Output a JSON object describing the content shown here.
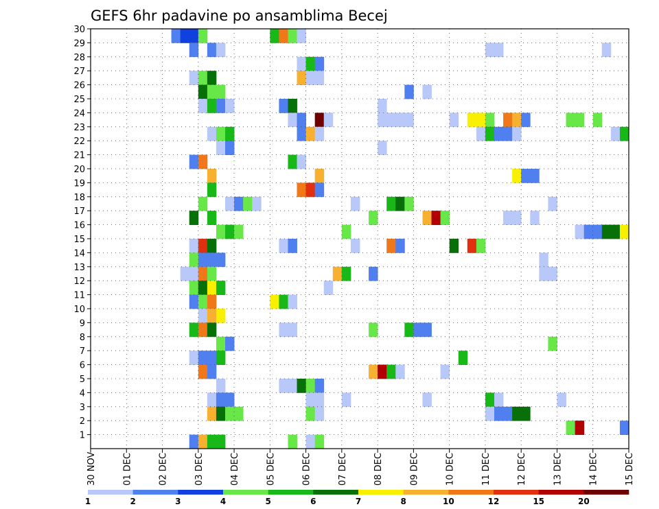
{
  "chart_data": {
    "type": "heatmap",
    "title": "GEFS 6hr padavine po ansamblima Becej",
    "xlabel": "",
    "ylabel": "",
    "y_tick_labels": [
      "1",
      "2",
      "3",
      "4",
      "5",
      "6",
      "7",
      "8",
      "9",
      "10",
      "11",
      "12",
      "13",
      "14",
      "15",
      "16",
      "17",
      "18",
      "19",
      "20",
      "21",
      "22",
      "23",
      "24",
      "25",
      "26",
      "27",
      "28",
      "29",
      "30"
    ],
    "x_tick_labels": [
      "30 NOV",
      "01 DEC",
      "02 DEC",
      "03 DEC",
      "04 DEC",
      "05 DEC",
      "06 DEC",
      "07 DEC",
      "08 DEC",
      "09 DEC",
      "10 DEC",
      "11 DEC",
      "12 DEC",
      "13 DEC",
      "14 DEC",
      "15 DEC"
    ],
    "x_range_steps": [
      0,
      60
    ],
    "y_range_members": [
      0,
      30
    ],
    "grid": true,
    "legend": {
      "position": "bottom",
      "labels": [
        "1",
        "2",
        "3",
        "4",
        "5",
        "6",
        "7",
        "8",
        "10",
        "12",
        "15",
        "20"
      ],
      "colors": [
        "#b8c8f8",
        "#5080f0",
        "#1040e0",
        "#68e848",
        "#18b818",
        "#087008",
        "#f8f000",
        "#f8b030",
        "#f07818",
        "#e03010",
        "#b00000",
        "#700000"
      ]
    },
    "cells": [
      [
        30,
        9,
        2
      ],
      [
        30,
        10,
        3
      ],
      [
        30,
        11,
        3
      ],
      [
        30,
        12,
        4
      ],
      [
        30,
        20,
        5
      ],
      [
        30,
        21,
        10
      ],
      [
        30,
        22,
        4
      ],
      [
        30,
        23,
        1
      ],
      [
        29,
        11,
        2
      ],
      [
        29,
        13,
        2
      ],
      [
        29,
        14,
        1
      ],
      [
        29,
        44,
        1
      ],
      [
        29,
        45,
        1
      ],
      [
        29,
        57,
        1
      ],
      [
        28,
        23,
        1
      ],
      [
        28,
        24,
        5
      ],
      [
        28,
        25,
        2
      ],
      [
        27,
        11,
        1
      ],
      [
        27,
        12,
        4
      ],
      [
        27,
        13,
        6
      ],
      [
        27,
        23,
        8
      ],
      [
        27,
        24,
        1
      ],
      [
        27,
        25,
        1
      ],
      [
        26,
        12,
        6
      ],
      [
        26,
        13,
        4
      ],
      [
        26,
        14,
        4
      ],
      [
        26,
        35,
        2
      ],
      [
        26,
        37,
        1
      ],
      [
        25,
        12,
        1
      ],
      [
        25,
        13,
        5
      ],
      [
        25,
        14,
        2
      ],
      [
        25,
        15,
        1
      ],
      [
        25,
        21,
        2
      ],
      [
        25,
        22,
        6
      ],
      [
        25,
        32,
        1
      ],
      [
        24,
        22,
        1
      ],
      [
        24,
        23,
        2
      ],
      [
        24,
        25,
        20
      ],
      [
        24,
        26,
        1
      ],
      [
        24,
        32,
        1
      ],
      [
        24,
        33,
        1
      ],
      [
        24,
        34,
        1
      ],
      [
        24,
        35,
        1
      ],
      [
        24,
        40,
        1
      ],
      [
        24,
        42,
        7
      ],
      [
        24,
        43,
        7
      ],
      [
        24,
        44,
        4
      ],
      [
        24,
        46,
        10
      ],
      [
        24,
        47,
        8
      ],
      [
        24,
        48,
        2
      ],
      [
        24,
        53,
        4
      ],
      [
        24,
        54,
        4
      ],
      [
        24,
        56,
        4
      ],
      [
        23,
        13,
        1
      ],
      [
        23,
        14,
        4
      ],
      [
        23,
        15,
        5
      ],
      [
        23,
        23,
        2
      ],
      [
        23,
        24,
        8
      ],
      [
        23,
        25,
        1
      ],
      [
        23,
        43,
        1
      ],
      [
        23,
        44,
        5
      ],
      [
        23,
        45,
        2
      ],
      [
        23,
        46,
        2
      ],
      [
        23,
        47,
        1
      ],
      [
        23,
        58,
        1
      ],
      [
        23,
        59,
        5
      ],
      [
        22,
        14,
        1
      ],
      [
        22,
        15,
        2
      ],
      [
        22,
        32,
        1
      ],
      [
        21,
        11,
        2
      ],
      [
        21,
        12,
        10
      ],
      [
        21,
        22,
        5
      ],
      [
        21,
        23,
        1
      ],
      [
        20,
        13,
        8
      ],
      [
        20,
        25,
        8
      ],
      [
        20,
        47,
        7
      ],
      [
        20,
        48,
        2
      ],
      [
        20,
        49,
        2
      ],
      [
        19,
        13,
        5
      ],
      [
        19,
        23,
        10
      ],
      [
        19,
        24,
        12
      ],
      [
        19,
        25,
        2
      ],
      [
        18,
        12,
        4
      ],
      [
        18,
        15,
        1
      ],
      [
        18,
        16,
        2
      ],
      [
        18,
        17,
        4
      ],
      [
        18,
        18,
        1
      ],
      [
        18,
        29,
        1
      ],
      [
        18,
        33,
        5
      ],
      [
        18,
        34,
        6
      ],
      [
        18,
        35,
        4
      ],
      [
        18,
        51,
        1
      ],
      [
        17,
        11,
        6
      ],
      [
        17,
        13,
        5
      ],
      [
        17,
        31,
        4
      ],
      [
        17,
        37,
        8
      ],
      [
        17,
        38,
        15
      ],
      [
        17,
        39,
        4
      ],
      [
        17,
        46,
        1
      ],
      [
        17,
        47,
        1
      ],
      [
        17,
        49,
        1
      ],
      [
        16,
        14,
        4
      ],
      [
        16,
        15,
        5
      ],
      [
        16,
        16,
        4
      ],
      [
        16,
        28,
        4
      ],
      [
        16,
        54,
        1
      ],
      [
        16,
        55,
        2
      ],
      [
        16,
        56,
        2
      ],
      [
        16,
        57,
        6
      ],
      [
        16,
        58,
        6
      ],
      [
        16,
        59,
        7
      ],
      [
        15,
        11,
        1
      ],
      [
        15,
        12,
        12
      ],
      [
        15,
        13,
        6
      ],
      [
        15,
        21,
        1
      ],
      [
        15,
        22,
        2
      ],
      [
        15,
        29,
        1
      ],
      [
        15,
        33,
        10
      ],
      [
        15,
        34,
        2
      ],
      [
        15,
        40,
        6
      ],
      [
        15,
        42,
        12
      ],
      [
        15,
        43,
        4
      ],
      [
        14,
        11,
        4
      ],
      [
        14,
        12,
        2
      ],
      [
        14,
        13,
        2
      ],
      [
        14,
        14,
        2
      ],
      [
        14,
        50,
        1
      ],
      [
        13,
        10,
        1
      ],
      [
        13,
        11,
        1
      ],
      [
        13,
        12,
        10
      ],
      [
        13,
        13,
        4
      ],
      [
        13,
        27,
        8
      ],
      [
        13,
        28,
        5
      ],
      [
        13,
        31,
        2
      ],
      [
        13,
        50,
        1
      ],
      [
        13,
        51,
        1
      ],
      [
        12,
        11,
        4
      ],
      [
        12,
        12,
        6
      ],
      [
        12,
        13,
        7
      ],
      [
        12,
        14,
        5
      ],
      [
        12,
        26,
        1
      ],
      [
        11,
        11,
        2
      ],
      [
        11,
        12,
        4
      ],
      [
        11,
        13,
        10
      ],
      [
        11,
        20,
        7
      ],
      [
        11,
        21,
        5
      ],
      [
        11,
        22,
        1
      ],
      [
        10,
        12,
        1
      ],
      [
        10,
        13,
        8
      ],
      [
        10,
        14,
        7
      ],
      [
        9,
        11,
        5
      ],
      [
        9,
        12,
        10
      ],
      [
        9,
        13,
        6
      ],
      [
        9,
        21,
        1
      ],
      [
        9,
        22,
        1
      ],
      [
        9,
        31,
        4
      ],
      [
        9,
        35,
        5
      ],
      [
        9,
        36,
        2
      ],
      [
        9,
        37,
        2
      ],
      [
        8,
        14,
        4
      ],
      [
        8,
        15,
        2
      ],
      [
        8,
        51,
        4
      ],
      [
        7,
        11,
        1
      ],
      [
        7,
        12,
        2
      ],
      [
        7,
        13,
        2
      ],
      [
        7,
        14,
        5
      ],
      [
        7,
        41,
        5
      ],
      [
        6,
        12,
        10
      ],
      [
        6,
        13,
        2
      ],
      [
        6,
        31,
        8
      ],
      [
        6,
        32,
        15
      ],
      [
        6,
        33,
        5
      ],
      [
        6,
        34,
        1
      ],
      [
        6,
        39,
        1
      ],
      [
        5,
        14,
        1
      ],
      [
        5,
        21,
        1
      ],
      [
        5,
        22,
        1
      ],
      [
        5,
        23,
        6
      ],
      [
        5,
        24,
        4
      ],
      [
        5,
        25,
        2
      ],
      [
        4,
        13,
        1
      ],
      [
        4,
        14,
        2
      ],
      [
        4,
        15,
        2
      ],
      [
        4,
        24,
        1
      ],
      [
        4,
        25,
        1
      ],
      [
        4,
        28,
        1
      ],
      [
        4,
        37,
        1
      ],
      [
        4,
        44,
        5
      ],
      [
        4,
        45,
        1
      ],
      [
        4,
        52,
        1
      ],
      [
        3,
        13,
        8
      ],
      [
        3,
        14,
        6
      ],
      [
        3,
        15,
        4
      ],
      [
        3,
        16,
        4
      ],
      [
        3,
        24,
        4
      ],
      [
        3,
        25,
        1
      ],
      [
        3,
        44,
        1
      ],
      [
        3,
        45,
        2
      ],
      [
        3,
        46,
        2
      ],
      [
        3,
        47,
        6
      ],
      [
        3,
        48,
        6
      ],
      [
        2,
        53,
        4
      ],
      [
        2,
        54,
        15
      ],
      [
        2,
        59,
        2
      ],
      [
        1,
        11,
        2
      ],
      [
        1,
        12,
        8
      ],
      [
        1,
        13,
        5
      ],
      [
        1,
        14,
        5
      ],
      [
        1,
        22,
        4
      ],
      [
        1,
        24,
        1
      ],
      [
        1,
        25,
        4
      ]
    ]
  }
}
